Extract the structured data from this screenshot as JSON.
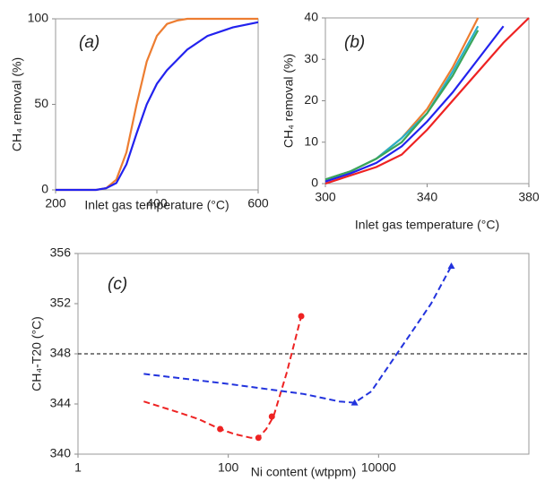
{
  "chart_data": [
    {
      "type": "line",
      "panel_label": "(a)",
      "x_label": "Inlet gas temperature (°C)",
      "y_label": "CH₄ removal (%)",
      "xlim": [
        200,
        600
      ],
      "xticks": [
        200,
        400,
        600
      ],
      "ylim": [
        0,
        100
      ],
      "yticks": [
        0,
        50,
        100
      ],
      "x": [
        200,
        280,
        300,
        320,
        340,
        360,
        380,
        400,
        420,
        440,
        460,
        500,
        550,
        600
      ],
      "series": [
        {
          "color": "#ed7d31",
          "style": "solid",
          "values": [
            0,
            0,
            1,
            6,
            22,
            50,
            75,
            90,
            97,
            99,
            100,
            100,
            100,
            100
          ]
        },
        {
          "color": "#2222ee",
          "style": "solid",
          "values": [
            0,
            0,
            1,
            4,
            15,
            33,
            50,
            62,
            70,
            76,
            82,
            90,
            95,
            98
          ]
        }
      ]
    },
    {
      "type": "line",
      "panel_label": "(b)",
      "x_label": "Inlet gas temperature (°C)",
      "y_label": "CH₄ removal (%)",
      "xlim": [
        300,
        380
      ],
      "xticks": [
        300,
        340,
        380
      ],
      "ylim": [
        0,
        40
      ],
      "yticks": [
        0,
        10,
        20,
        30,
        40
      ],
      "x": [
        300,
        310,
        320,
        330,
        340,
        350,
        360,
        370,
        380
      ],
      "series": [
        {
          "color": "#ed7d31",
          "style": "solid",
          "values": [
            1,
            3,
            6,
            11,
            18,
            28,
            40,
            null,
            null
          ]
        },
        {
          "color": "#2ab0c8",
          "style": "solid",
          "values": [
            1,
            3,
            6,
            11,
            17,
            27,
            38,
            null,
            null
          ]
        },
        {
          "color": "#3aa55a",
          "style": "solid",
          "values": [
            1,
            3,
            6,
            10,
            17,
            26,
            37,
            null,
            null
          ]
        },
        {
          "color": "#2222ee",
          "style": "solid",
          "values": [
            0.5,
            2.5,
            5,
            9,
            15,
            22,
            30,
            38,
            null
          ]
        },
        {
          "color": "#ee2222",
          "style": "solid",
          "values": [
            0,
            2,
            4,
            7,
            13,
            20,
            27,
            34,
            40
          ]
        }
      ]
    },
    {
      "type": "line",
      "panel_label": "(c)",
      "x_label": "Ni content (wtppm)",
      "y_label": "CH₄-T20 (°C)",
      "x_scale": "log",
      "xlim": [
        1,
        1000000
      ],
      "xticks": [
        1,
        100,
        10000
      ],
      "ylim": [
        340,
        356
      ],
      "yticks": [
        340,
        344,
        348,
        352,
        356
      ],
      "hline": 348,
      "series": [
        {
          "color": "#ee2222",
          "style": "dashed",
          "x": [
            7.5,
            20,
            40,
            78,
            120,
            200,
            252,
            320,
            400,
            600,
            935
          ],
          "values": [
            344.2,
            343.4,
            342.8,
            342,
            341.6,
            341.3,
            341.3,
            342,
            343,
            346.5,
            351
          ]
        },
        {
          "color": "#ee2222",
          "style": "none",
          "marker": "circle",
          "x": [
            78,
            252,
            380,
            935
          ],
          "values": [
            342,
            341.3,
            343,
            351
          ]
        },
        {
          "color": "#2233dd",
          "style": "dashed",
          "x": [
            7.5,
            100,
            1000,
            3000,
            4800,
            8000,
            20000,
            50000,
            93000
          ],
          "values": [
            346.4,
            345.6,
            344.8,
            344.2,
            344.1,
            345,
            348.5,
            352,
            355
          ]
        },
        {
          "color": "#2233dd",
          "style": "none",
          "marker": "triangle",
          "x": [
            4800,
            93000
          ],
          "values": [
            344.1,
            355
          ]
        }
      ]
    }
  ]
}
